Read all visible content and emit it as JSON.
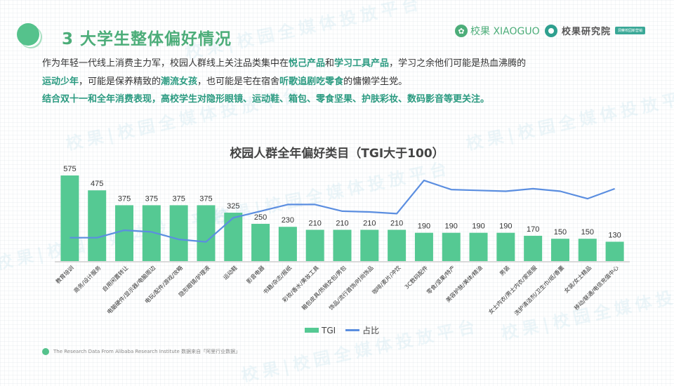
{
  "header": {
    "title": "3 大学生整体偏好情况",
    "brand_primary": "校果 XIAOGUO",
    "brand_secondary": "校果研究院",
    "brand_tag": "洞察校园新营销"
  },
  "intro": {
    "line1": [
      {
        "text": "作为年轻一代线上消费主力军，校园人群线上关注品类集中在",
        "highlight": false
      },
      {
        "text": "悦己产品",
        "highlight": true
      },
      {
        "text": "和",
        "highlight": false
      },
      {
        "text": "学习工具产品",
        "highlight": true
      },
      {
        "text": "，学习之余他们可能是热血沸腾的",
        "highlight": false
      }
    ],
    "line2": [
      {
        "text": "运动少年",
        "highlight": true
      },
      {
        "text": "，可能是保养精致的",
        "highlight": false
      },
      {
        "text": "潮流女孩",
        "highlight": true
      },
      {
        "text": "，也可能是宅在宿舍",
        "highlight": false
      },
      {
        "text": "听歌追剧吃零食",
        "highlight": true
      },
      {
        "text": "的慵懒学生党。",
        "highlight": false
      }
    ],
    "line3": "结合双十一和全年消费表现，高校学生对隐形眼镜、运动鞋、箱包、零食坚果、护肤彩妆、数码影音等更关注。"
  },
  "watermark_text": "校果|校园全媒体投放平台",
  "colors": {
    "bar": "#55c993",
    "line": "#5b8ee0",
    "accent": "#4cad79",
    "highlight": "#2a9a80"
  },
  "chart_data": {
    "type": "bar",
    "title": "校园人群全年偏好类目（TGI大于100）",
    "xlabel": "",
    "ylabel": "",
    "ylim": [
      0,
      600
    ],
    "grid": false,
    "legend_position": "bottom",
    "categories": [
      "教育培训",
      "商务/设计服务",
      "自用闲置转让",
      "电脑硬件/显示器/电脑周边",
      "电玩/配件/游戏/攻略",
      "隐形眼镜/护理液",
      "运动鞋",
      "影音电器",
      "书籍/杂志/报纸",
      "彩妆/香水/美妆工具",
      "箱包皮具/热销女包/男包",
      "饰品/流行首饰/时尚饰品",
      "咖啡/麦片/冲饮",
      "3C数码配件",
      "零食/坚果/特产",
      "美容护肤/美体/精油",
      "男装",
      "女士内衣/男士内衣/家居服",
      "洗护清洁剂/卫生巾/纸/香薰",
      "女装/女士精品",
      "移动/联通/电信充值中心"
    ],
    "series": [
      {
        "name": "TGI",
        "type": "bar",
        "values": [
          575,
          475,
          375,
          375,
          375,
          375,
          325,
          250,
          230,
          210,
          210,
          210,
          210,
          190,
          190,
          190,
          190,
          170,
          150,
          150,
          130
        ]
      },
      {
        "name": "占比",
        "type": "line",
        "values": [
          0.18,
          0.18,
          0.27,
          0.25,
          0.16,
          0.13,
          0.42,
          0.5,
          0.58,
          0.58,
          0.5,
          0.49,
          0.47,
          0.87,
          0.76,
          0.75,
          0.74,
          0.77,
          0.74,
          0.65,
          0.77
        ]
      }
    ]
  },
  "legend": {
    "bar_label": "TGI",
    "line_label": "占比"
  },
  "footer": {
    "source": "The Research Data  From Alibaba Research Institute 数据来自「阿里行业数据」"
  }
}
